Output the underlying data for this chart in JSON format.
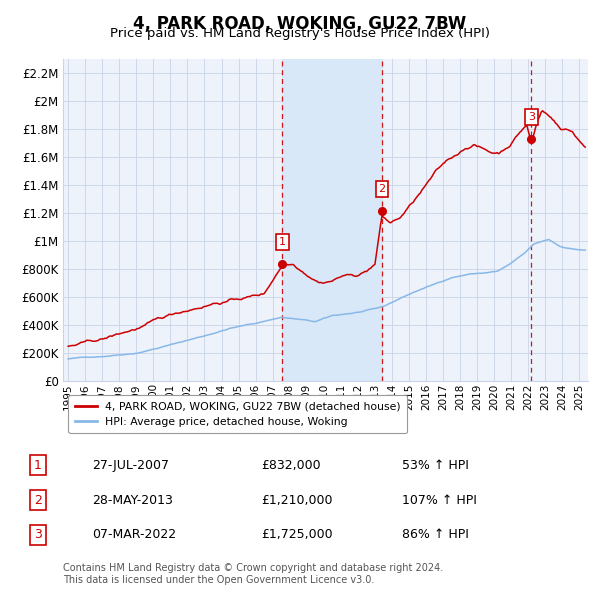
{
  "title": "4, PARK ROAD, WOKING, GU22 7BW",
  "subtitle": "Price paid vs. HM Land Registry's House Price Index (HPI)",
  "legend_property": "4, PARK ROAD, WOKING, GU22 7BW (detached house)",
  "legend_hpi": "HPI: Average price, detached house, Woking",
  "footnote1": "Contains HM Land Registry data © Crown copyright and database right 2024.",
  "footnote2": "This data is licensed under the Open Government Licence v3.0.",
  "transactions": [
    {
      "num": 1,
      "date": "27-JUL-2007",
      "price": 832000,
      "pct": "53% ↑ HPI"
    },
    {
      "num": 2,
      "date": "28-MAY-2013",
      "price": 1210000,
      "pct": "107% ↑ HPI"
    },
    {
      "num": 3,
      "date": "07-MAR-2022",
      "price": 1725000,
      "pct": "86% ↑ HPI"
    }
  ],
  "transaction_dates_decimal": [
    2007.57,
    2013.41,
    2022.18
  ],
  "ylim": [
    0,
    2300000
  ],
  "yticks": [
    0,
    200000,
    400000,
    600000,
    800000,
    1000000,
    1200000,
    1400000,
    1600000,
    1800000,
    2000000,
    2200000
  ],
  "ytick_labels": [
    "£0",
    "£200K",
    "£400K",
    "£600K",
    "£800K",
    "£1M",
    "£1.2M",
    "£1.4M",
    "£1.6M",
    "£1.8M",
    "£2M",
    "£2.2M"
  ],
  "xlim_start": 1994.7,
  "xlim_end": 2025.5,
  "bg_color": "#eef2fb",
  "grid_color": "#c8d4e8",
  "property_line_color": "#cc0000",
  "hpi_line_color": "#88b8e8",
  "vline_color": "#cc0000",
  "highlight_fill": "#d8e8f8",
  "dot_color": "#cc0000",
  "transaction_box_color": "#cc0000",
  "hpi_anchors_x": [
    1995.0,
    1997.0,
    1999.0,
    2001.0,
    2003.0,
    2004.5,
    2006.0,
    2007.5,
    2008.5,
    2009.5,
    2010.5,
    2012.0,
    2013.0,
    2013.5,
    2014.5,
    2015.5,
    2016.5,
    2017.5,
    2018.5,
    2019.5,
    2020.2,
    2021.0,
    2021.8,
    2022.3,
    2022.8,
    2023.2,
    2023.8,
    2024.3,
    2025.3
  ],
  "hpi_anchors_y": [
    155000,
    175000,
    205000,
    265000,
    330000,
    385000,
    420000,
    465000,
    450000,
    430000,
    470000,
    495000,
    515000,
    530000,
    590000,
    645000,
    690000,
    740000,
    765000,
    775000,
    785000,
    840000,
    910000,
    970000,
    990000,
    1005000,
    960000,
    945000,
    930000
  ],
  "prop_anchors_x": [
    1995.0,
    1997.0,
    1999.0,
    2001.5,
    2003.5,
    2005.0,
    2006.5,
    2007.57,
    2008.2,
    2009.0,
    2009.8,
    2010.5,
    2011.2,
    2011.8,
    2012.5,
    2013.0,
    2013.41,
    2013.9,
    2014.5,
    2015.2,
    2015.8,
    2016.5,
    2017.2,
    2017.8,
    2018.3,
    2018.8,
    2019.3,
    2019.8,
    2020.3,
    2020.9,
    2021.4,
    2021.9,
    2022.18,
    2022.5,
    2022.8,
    2023.0,
    2023.3,
    2023.6,
    2023.9,
    2024.2,
    2024.6,
    2025.0,
    2025.3
  ],
  "prop_anchors_y": [
    245000,
    285000,
    360000,
    465000,
    545000,
    580000,
    615000,
    832000,
    840000,
    780000,
    730000,
    750000,
    790000,
    780000,
    820000,
    870000,
    1210000,
    1160000,
    1200000,
    1300000,
    1390000,
    1500000,
    1580000,
    1630000,
    1680000,
    1710000,
    1680000,
    1650000,
    1650000,
    1710000,
    1790000,
    1860000,
    1725000,
    1870000,
    1960000,
    1940000,
    1920000,
    1880000,
    1830000,
    1830000,
    1810000,
    1750000,
    1710000
  ]
}
